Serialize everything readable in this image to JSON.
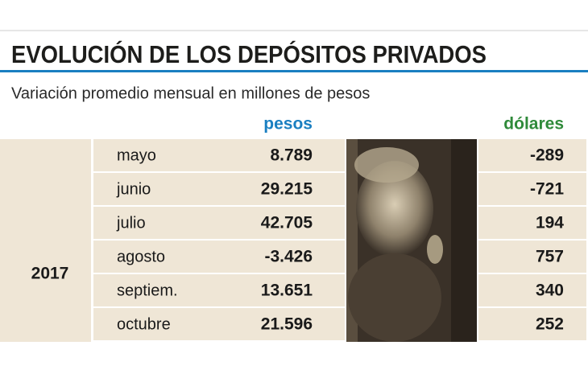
{
  "header": {
    "title": "EVOLUCIÓN DE LOS DEPÓSITOS PRIVADOS",
    "subtitle": "Variación promedio mensual en millones de pesos"
  },
  "table": {
    "columns": [
      "pesos",
      "dólares"
    ],
    "year": "2017",
    "rows": [
      [
        "mayo",
        "8.789",
        "-289"
      ],
      [
        "junio",
        "29.215",
        "-721"
      ],
      [
        "julio",
        "42.705",
        "194"
      ],
      [
        "agosto",
        "-3.426",
        "757"
      ],
      [
        "septiem.",
        "13.651",
        "340"
      ],
      [
        "octubre",
        "21.596",
        "252"
      ]
    ]
  }
}
